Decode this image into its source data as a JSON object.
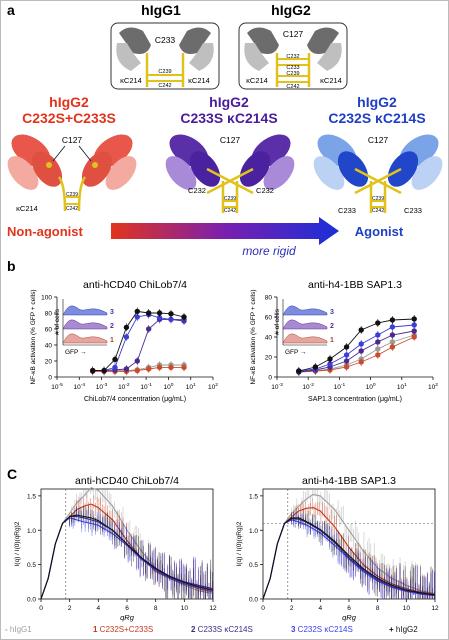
{
  "panel_a": {
    "label": "a",
    "top_titles": {
      "g1": "hIgG1",
      "g2": "hIgG2"
    },
    "igg1": {
      "c233": "C233",
      "k214_left": "κC214",
      "k214_right": "κC214",
      "c239": "C239",
      "c242": "C242"
    },
    "igg2": {
      "c127": "C127",
      "c232": "C232",
      "c233": "C233",
      "c239": "C239",
      "c242": "C242",
      "k214_left": "κC214",
      "k214_right": "κC214"
    },
    "variants": [
      {
        "line1": "hIgG2",
        "line2": "C232S+C233S",
        "color": "#e2341d",
        "labels": {
          "c127": "C127",
          "k214": "κC214",
          "c239": "C239",
          "c242": "C242"
        }
      },
      {
        "line1": "hIgG2",
        "line2": "C233S κC214S",
        "color": "#4b1c9b",
        "labels": {
          "c127": "C127",
          "c232_left": "C232",
          "c232_right": "C232",
          "c239": "C239",
          "c242": "C242"
        }
      },
      {
        "line1": "hIgG2",
        "line2": "C232S κC214S",
        "color": "#1f3fc5",
        "labels": {
          "c127": "C127",
          "c233_left": "C233",
          "c233_right": "C233",
          "c239": "C239",
          "c242": "C242"
        }
      }
    ],
    "arrow": {
      "left": "Non-agonist",
      "right": "Agonist",
      "middle": "more rigid"
    }
  },
  "panel_b": {
    "label": "b",
    "colors": {
      "igg1": "#9a9a9a",
      "c232c233": "#c94c2d",
      "c233k214": "#4a2a8c",
      "c232k214": "#3b3fd8",
      "igg2": "#111111"
    },
    "insets": {
      "y": "# of cells",
      "x": "GFP",
      "ticks": [
        "3",
        "2",
        "1"
      ]
    },
    "chart_data": [
      {
        "type": "line",
        "title": "anti-hCD40 ChiLob7/4",
        "xlabel": "ChiLob7/4 concentration (μg/mL)",
        "ylabel": "NF-κB activation (% GFP + cells)",
        "xscale": "log",
        "xlim": [
          1e-05,
          100
        ],
        "ylim": [
          0,
          100
        ],
        "xticks": [
          "10-5",
          "10-4",
          "10-3",
          "10-2",
          "10-1",
          "100",
          "101",
          "102"
        ],
        "yticks": [
          "0",
          "20",
          "40",
          "60",
          "80",
          "100"
        ],
        "x": [
          0.0004,
          0.0013,
          0.004,
          0.013,
          0.04,
          0.13,
          0.4,
          1.3,
          5
        ],
        "series": [
          {
            "key": "igg1",
            "values": [
              8,
              8,
              8,
              8,
              9,
              12,
              15,
              15,
              15
            ]
          },
          {
            "key": "c232c233",
            "values": [
              7,
              7,
              7,
              7,
              8,
              10,
              12,
              12,
              12
            ]
          },
          {
            "key": "c233k214",
            "values": [
              8,
              8,
              9,
              10,
              20,
              60,
              72,
              72,
              70
            ]
          },
          {
            "key": "c232k214",
            "values": [
              8,
              8,
              12,
              50,
              75,
              78,
              74,
              72,
              72
            ]
          },
          {
            "key": "igg2",
            "values": [
              8,
              8,
              22,
              62,
              82,
              80,
              80,
              79,
              75
            ]
          }
        ]
      },
      {
        "type": "line",
        "title": "anti-h4-1BB SAP1.3",
        "xlabel": "SAP1.3 concentration (μg/mL)",
        "ylabel": "NF-κB activation (% GFP + cells)",
        "xscale": "log",
        "xlim": [
          0.001,
          100
        ],
        "ylim": [
          0,
          80
        ],
        "xticks": [
          "10-3",
          "10-2",
          "10-1",
          "100",
          "101",
          "102"
        ],
        "yticks": [
          "0",
          "20",
          "40",
          "60",
          "80"
        ],
        "x": [
          0.005,
          0.017,
          0.05,
          0.17,
          0.5,
          1.7,
          5,
          25
        ],
        "series": [
          {
            "key": "igg1",
            "values": [
              5,
              6,
              8,
              12,
              18,
              28,
              35,
              42
            ]
          },
          {
            "key": "c232c233",
            "values": [
              5,
              6,
              7,
              10,
              15,
              22,
              30,
              40
            ]
          },
          {
            "key": "c233k214",
            "values": [
              5,
              7,
              10,
              16,
              26,
              35,
              42,
              46
            ]
          },
          {
            "key": "c232k214",
            "values": [
              6,
              8,
              13,
              22,
              33,
              42,
              50,
              52
            ]
          },
          {
            "key": "igg2",
            "values": [
              6,
              10,
              18,
              30,
              47,
              54,
              57,
              58
            ]
          }
        ]
      }
    ]
  },
  "panel_c": {
    "label": "C",
    "colors": {
      "igg1": "#a0a0a0",
      "c232c233": "#c23a1f",
      "c233k214": "#3d2a8a",
      "c232k214": "#3a3ff0",
      "igg2": "#111111"
    },
    "chart_data": [
      {
        "type": "line",
        "title": "anti-hCD40 ChiLob7/4",
        "xlabel": "qRg",
        "ylabel": "I(q) / I(0)(qRg)2",
        "xlim": [
          0,
          12
        ],
        "ylim": [
          0,
          1.6
        ],
        "xticks": [
          "0",
          "2",
          "4",
          "6",
          "8",
          "10",
          "12"
        ],
        "yticks": [
          "0.0",
          "0.5",
          "1.0",
          "1.5"
        ],
        "vline": 1.73,
        "series": [
          {
            "key": "igg1",
            "x": [
              0,
              0.5,
              1,
              1.5,
              2,
              2.5,
              3,
              3.5,
              4,
              5,
              6,
              7,
              8,
              9,
              10,
              11,
              12
            ],
            "y": [
              0,
              0.3,
              0.8,
              1.1,
              1.25,
              1.4,
              1.5,
              1.62,
              1.58,
              1.35,
              1.0,
              0.7,
              0.45,
              0.3,
              0.2,
              0.12,
              0.08
            ]
          },
          {
            "key": "c232c233",
            "x": [
              0,
              0.5,
              1,
              1.5,
              2,
              2.5,
              3,
              3.5,
              4,
              5,
              6,
              7,
              8,
              9,
              10,
              11,
              12
            ],
            "y": [
              0,
              0.3,
              0.8,
              1.1,
              1.2,
              1.3,
              1.35,
              1.38,
              1.33,
              1.15,
              0.85,
              0.6,
              0.4,
              0.3,
              0.22,
              0.15,
              0.1
            ]
          },
          {
            "key": "c233k214",
            "x": [
              0,
              0.5,
              1,
              1.5,
              2,
              2.5,
              3,
              3.5,
              4,
              5,
              6,
              7,
              8,
              9,
              10,
              11,
              12
            ],
            "y": [
              0,
              0.3,
              0.8,
              1.1,
              1.2,
              1.2,
              1.18,
              1.15,
              1.12,
              1.0,
              0.8,
              0.6,
              0.45,
              0.33,
              0.25,
              0.2,
              0.15
            ]
          },
          {
            "key": "c232k214",
            "x": [
              0,
              0.5,
              1,
              1.5,
              2,
              2.5,
              3,
              3.5,
              4,
              5,
              6,
              7,
              8,
              9,
              10,
              11,
              12
            ],
            "y": [
              0,
              0.3,
              0.8,
              1.1,
              1.18,
              1.15,
              1.12,
              1.1,
              1.07,
              0.95,
              0.78,
              0.58,
              0.42,
              0.3,
              0.22,
              0.17,
              0.12
            ]
          },
          {
            "key": "igg2",
            "x": [
              0,
              0.5,
              1,
              1.5,
              2,
              2.5,
              3,
              3.5,
              4,
              5,
              6,
              7,
              8,
              9,
              10,
              11,
              12
            ],
            "y": [
              0,
              0.3,
              0.8,
              1.1,
              1.2,
              1.22,
              1.2,
              1.18,
              1.14,
              1.0,
              0.8,
              0.6,
              0.44,
              0.32,
              0.24,
              0.18,
              0.13
            ]
          }
        ]
      },
      {
        "type": "line",
        "title": "anti-h4-1BB SAP1.3",
        "xlabel": "qRg",
        "ylabel": "I(q) / I(0)(qRg)2",
        "xlim": [
          0,
          12
        ],
        "ylim": [
          0,
          1.6
        ],
        "xticks": [
          "0",
          "2",
          "4",
          "6",
          "8",
          "10",
          "12"
        ],
        "yticks": [
          "0.0",
          "0.5",
          "1.0",
          "1.5"
        ],
        "vline": 1.73,
        "hline": 1.1,
        "series": [
          {
            "key": "igg1",
            "x": [
              0,
              0.5,
              1,
              1.5,
              2,
              2.5,
              3,
              3.5,
              4,
              5,
              6,
              7,
              8,
              9,
              10,
              11,
              12
            ],
            "y": [
              0,
              0.3,
              0.8,
              1.1,
              1.25,
              1.35,
              1.45,
              1.52,
              1.5,
              1.3,
              1.0,
              0.7,
              0.45,
              0.3,
              0.2,
              0.12,
              0.08
            ]
          },
          {
            "key": "c232c233",
            "x": [
              0,
              0.5,
              1,
              1.5,
              2,
              2.5,
              3,
              3.5,
              4,
              5,
              6,
              7,
              8,
              9,
              10,
              11,
              12
            ],
            "y": [
              0,
              0.3,
              0.8,
              1.1,
              1.2,
              1.28,
              1.32,
              1.33,
              1.28,
              1.05,
              0.75,
              0.5,
              0.33,
              0.22,
              0.15,
              0.1,
              0.07
            ]
          },
          {
            "key": "c233k214",
            "x": [
              0,
              0.5,
              1,
              1.5,
              2,
              2.5,
              3,
              3.5,
              4,
              5,
              6,
              7,
              8,
              9,
              10,
              11,
              12
            ],
            "y": [
              0,
              0.3,
              0.8,
              1.1,
              1.17,
              1.16,
              1.12,
              1.06,
              1.0,
              0.82,
              0.6,
              0.42,
              0.28,
              0.18,
              0.12,
              0.08,
              0.05
            ]
          },
          {
            "key": "c232k214",
            "x": [
              0,
              0.5,
              1,
              1.5,
              2,
              2.5,
              3,
              3.5,
              4,
              5,
              6,
              7,
              8,
              9,
              10,
              11,
              12
            ],
            "y": [
              0,
              0.3,
              0.8,
              1.1,
              1.15,
              1.12,
              1.08,
              1.02,
              0.96,
              0.78,
              0.58,
              0.4,
              0.26,
              0.17,
              0.11,
              0.07,
              0.05
            ]
          },
          {
            "key": "igg2",
            "x": [
              0,
              0.5,
              1,
              1.5,
              2,
              2.5,
              3,
              3.5,
              4,
              5,
              6,
              7,
              8,
              9,
              10,
              11,
              12
            ],
            "y": [
              0,
              0.3,
              0.8,
              1.1,
              1.18,
              1.18,
              1.13,
              1.07,
              1.01,
              0.84,
              0.63,
              0.44,
              0.3,
              0.2,
              0.13,
              0.09,
              0.06
            ]
          }
        ]
      }
    ],
    "legend": [
      {
        "key": "igg1",
        "prefix": "- ",
        "text": "hIgG1"
      },
      {
        "key": "c232c233",
        "prefix": "1 ",
        "text": "C232S+C233S"
      },
      {
        "key": "c233k214",
        "prefix": "2 ",
        "text": "C233S κC214S"
      },
      {
        "key": "c232k214",
        "prefix": "3 ",
        "text": "C232S κC214S"
      },
      {
        "key": "igg2",
        "prefix": "+ ",
        "text": "hIgG2"
      }
    ]
  }
}
